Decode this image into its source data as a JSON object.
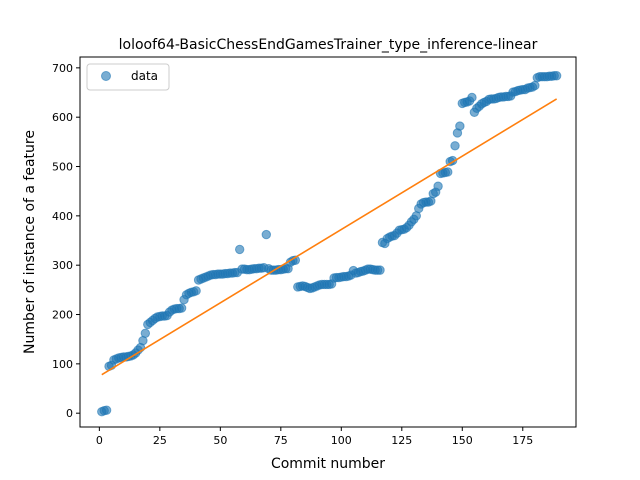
{
  "chart_data": {
    "type": "scatter",
    "title": "loloof64-BasicChessEndGamesTrainer_type_inference-linear",
    "xlabel": "Commit number",
    "ylabel": "Number of instance of a feature",
    "xlim": [
      -8,
      197
    ],
    "ylim": [
      -28,
      722
    ],
    "xticks": [
      0,
      25,
      50,
      75,
      100,
      125,
      150,
      175
    ],
    "yticks": [
      0,
      100,
      200,
      300,
      400,
      500,
      600,
      700
    ],
    "grid": false,
    "legend_position": "top-left",
    "colors": {
      "data": "#1f77b4",
      "fit": "#ff7f0e"
    },
    "series": [
      {
        "name": "data",
        "kind": "points",
        "x": [
          1,
          2,
          3,
          4,
          5,
          6,
          7,
          8,
          9,
          10,
          11,
          12,
          13,
          14,
          15,
          16,
          17,
          18,
          19,
          20,
          21,
          22,
          23,
          24,
          25,
          26,
          27,
          28,
          29,
          30,
          31,
          32,
          33,
          34,
          35,
          36,
          37,
          38,
          39,
          40,
          41,
          42,
          43,
          44,
          45,
          46,
          47,
          48,
          49,
          50,
          51,
          52,
          53,
          54,
          55,
          56,
          57,
          58,
          59,
          60,
          61,
          62,
          63,
          64,
          65,
          66,
          67,
          68,
          69,
          70,
          71,
          72,
          73,
          74,
          75,
          76,
          77,
          78,
          79,
          80,
          81,
          82,
          83,
          84,
          85,
          86,
          87,
          88,
          89,
          90,
          91,
          92,
          93,
          94,
          95,
          96,
          97,
          98,
          99,
          100,
          101,
          102,
          103,
          104,
          105,
          106,
          107,
          108,
          109,
          110,
          111,
          112,
          113,
          114,
          115,
          116,
          117,
          118,
          119,
          120,
          121,
          122,
          123,
          124,
          125,
          126,
          127,
          128,
          129,
          130,
          131,
          132,
          133,
          134,
          135,
          136,
          137,
          138,
          139,
          140,
          141,
          142,
          143,
          144,
          145,
          146,
          147,
          148,
          149,
          150,
          151,
          152,
          153,
          154,
          155,
          156,
          157,
          158,
          159,
          160,
          161,
          162,
          163,
          164,
          165,
          166,
          167,
          168,
          169,
          170,
          171,
          172,
          173,
          174,
          175,
          176,
          177,
          178,
          179,
          180,
          181,
          182,
          183,
          184,
          185,
          186,
          187,
          188,
          189
        ],
        "y": [
          3,
          5,
          6,
          95,
          97,
          108,
          110,
          112,
          113,
          114,
          114,
          115,
          116,
          118,
          122,
          128,
          133,
          147,
          162,
          180,
          184,
          188,
          192,
          195,
          196,
          197,
          197,
          198,
          205,
          209,
          211,
          212,
          212,
          213,
          230,
          240,
          243,
          245,
          246,
          248,
          270,
          272,
          274,
          276,
          278,
          280,
          281,
          281,
          282,
          282,
          282,
          283,
          283,
          284,
          284,
          285,
          285,
          332,
          292,
          292,
          291,
          291,
          292,
          293,
          293,
          294,
          294,
          295,
          362,
          293,
          290,
          290,
          290,
          291,
          291,
          292,
          293,
          293,
          306,
          309,
          310,
          256,
          257,
          258,
          257,
          255,
          253,
          254,
          256,
          258,
          260,
          261,
          261,
          261,
          261,
          262,
          274,
          275,
          275,
          276,
          277,
          277,
          278,
          280,
          289,
          284,
          285,
          287,
          288,
          290,
          292,
          292,
          291,
          290,
          290,
          290,
          346,
          344,
          354,
          357,
          359,
          360,
          365,
          371,
          372,
          373,
          376,
          381,
          388,
          393,
          400,
          415,
          424,
          427,
          428,
          428,
          430,
          445,
          448,
          460,
          486,
          487,
          488,
          489,
          510,
          512,
          542,
          568,
          582,
          628,
          630,
          631,
          633,
          640,
          610,
          618,
          622,
          627,
          630,
          632,
          636,
          637,
          637,
          638,
          640,
          641,
          641,
          642,
          642,
          643,
          651,
          652,
          654,
          655,
          656,
          656,
          659,
          660,
          661,
          664,
          680,
          682,
          682,
          682,
          682,
          683,
          683,
          684,
          684
        ]
      },
      {
        "name": "",
        "kind": "line",
        "x": [
          1,
          189
        ],
        "y": [
          78,
          637
        ]
      }
    ]
  }
}
